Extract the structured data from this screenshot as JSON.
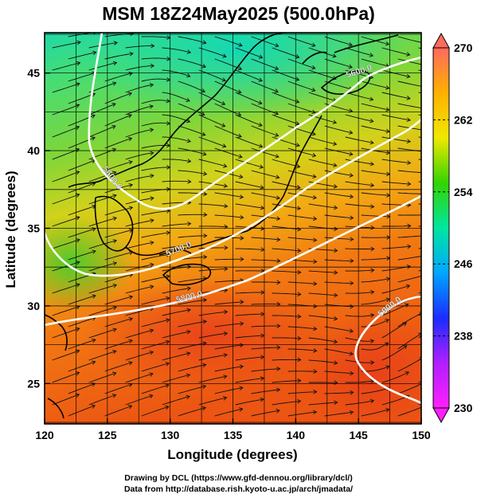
{
  "title": "MSM 18Z24May2025 (500.0hPa)",
  "map": {
    "xlabel": "Longitude (degrees)",
    "ylabel": "Latitude  (degrees)",
    "x_ticks": [
      "120",
      "125",
      "130",
      "135",
      "140",
      "145",
      "150"
    ],
    "y_ticks": [
      "25",
      "30",
      "35",
      "40",
      "45"
    ],
    "xlim": [
      120,
      150
    ],
    "ylim": [
      22.4,
      47.6
    ],
    "grid": true,
    "contours": [
      {
        "label": "5600.0",
        "value": 5600
      },
      {
        "label": "5700.0",
        "value": 5700
      },
      {
        "label": "5800.0",
        "value": 5800
      },
      {
        "label": "5900.0",
        "value": 5900
      }
    ]
  },
  "colorbar": {
    "min": 230,
    "max": 270,
    "labels": [
      "270",
      "262",
      "254",
      "246",
      "238",
      "230"
    ],
    "colors": [
      "#ff6a5e",
      "#ffb000",
      "#f0e800",
      "#33d400",
      "#00e6a0",
      "#00a6ff",
      "#1a2dff",
      "#b01fff",
      "#ff1fff"
    ]
  },
  "credits": {
    "line1": "Drawing by DCL (https://www.gfd-dennou.org/library/dcl/)",
    "line2": "Data from http://database.rish.kyoto-u.ac.jp/arch/jmadata/"
  }
}
